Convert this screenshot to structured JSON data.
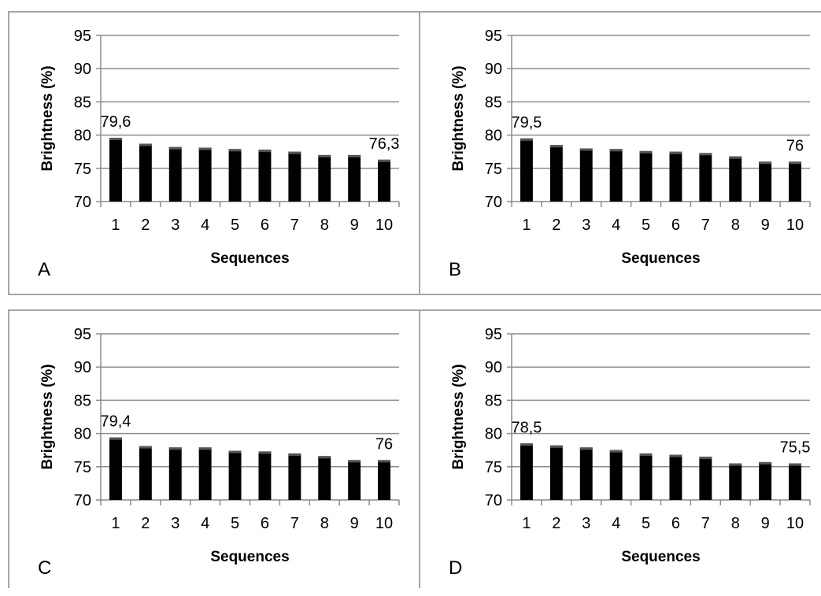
{
  "chart_data": [
    {
      "type": "bar",
      "panel_label": "A",
      "categories": [
        "1",
        "2",
        "3",
        "4",
        "5",
        "6",
        "7",
        "8",
        "9",
        "10"
      ],
      "values": [
        79.6,
        78.7,
        78.2,
        78.1,
        77.9,
        77.8,
        77.5,
        77.0,
        77.0,
        76.3
      ],
      "data_labels": [
        {
          "index": 0,
          "text": "79,6"
        },
        {
          "index": 9,
          "text": "76,3"
        }
      ],
      "xlabel": "Sequences",
      "ylabel": "Brightness (%)",
      "ylim": [
        70,
        95
      ],
      "yticks": [
        "70",
        "75",
        "80",
        "85",
        "90",
        "95"
      ],
      "grid": true,
      "bar_color": "#000000"
    },
    {
      "type": "bar",
      "panel_label": "B",
      "categories": [
        "1",
        "2",
        "3",
        "4",
        "5",
        "6",
        "7",
        "8",
        "9",
        "10"
      ],
      "values": [
        79.5,
        78.5,
        78.0,
        77.9,
        77.6,
        77.5,
        77.3,
        76.8,
        76.0,
        76.0
      ],
      "data_labels": [
        {
          "index": 0,
          "text": "79,5"
        },
        {
          "index": 9,
          "text": "76"
        }
      ],
      "xlabel": "Sequences",
      "ylabel": "Brightness (%)",
      "ylim": [
        70,
        95
      ],
      "yticks": [
        "70",
        "75",
        "80",
        "85",
        "90",
        "95"
      ],
      "grid": true,
      "bar_color": "#000000"
    },
    {
      "type": "bar",
      "panel_label": "C",
      "categories": [
        "1",
        "2",
        "3",
        "4",
        "5",
        "6",
        "7",
        "8",
        "9",
        "10"
      ],
      "values": [
        79.4,
        78.1,
        77.9,
        77.9,
        77.4,
        77.3,
        77.0,
        76.6,
        76.0,
        76.0
      ],
      "data_labels": [
        {
          "index": 0,
          "text": "79,4"
        },
        {
          "index": 9,
          "text": "76"
        }
      ],
      "xlabel": "Sequences",
      "ylabel": "Brightness  (%)",
      "ylim": [
        70,
        95
      ],
      "yticks": [
        "70",
        "75",
        "80",
        "85",
        "90",
        "95"
      ],
      "grid": true,
      "bar_color": "#000000"
    },
    {
      "type": "bar",
      "panel_label": "D",
      "categories": [
        "1",
        "2",
        "3",
        "4",
        "5",
        "6",
        "7",
        "8",
        "9",
        "10"
      ],
      "values": [
        78.5,
        78.2,
        77.9,
        77.5,
        77.0,
        76.8,
        76.5,
        75.5,
        75.7,
        75.5
      ],
      "data_labels": [
        {
          "index": 0,
          "text": "78,5"
        },
        {
          "index": 9,
          "text": "75,5"
        }
      ],
      "xlabel": "Sequences",
      "ylabel": "Brightness (%)",
      "ylim": [
        70,
        95
      ],
      "yticks": [
        "70",
        "75",
        "80",
        "85",
        "90",
        "95"
      ],
      "grid": true,
      "bar_color": "#000000"
    }
  ]
}
